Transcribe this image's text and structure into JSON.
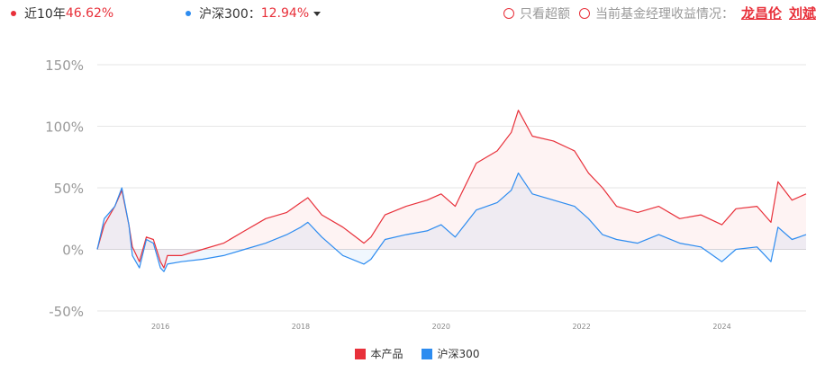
{
  "header": {
    "product_label": "近10年",
    "product_value": "46.62%",
    "index_label": "沪深300：",
    "index_value": "12.94%",
    "option_excess": "只看超额",
    "option_manager": "当前基金经理收益情况：",
    "managers": [
      "龙昌伦",
      "刘斌"
    ]
  },
  "colors": {
    "product": "#e8303a",
    "index": "#2d8cf0"
  },
  "chart_data": {
    "type": "line",
    "title": "",
    "xlabel": "",
    "ylabel": "",
    "ylim": [
      -50,
      150
    ],
    "y_ticks": [
      "150%",
      "100%",
      "50%",
      "0%",
      "-50%"
    ],
    "y_tick_values": [
      150,
      100,
      50,
      0,
      -50
    ],
    "x_ticks": [
      "2016",
      "2018",
      "2020",
      "2022",
      "2024"
    ],
    "x_tick_values": [
      2016,
      2018,
      2020,
      2022,
      2024
    ],
    "xlim": [
      2015.1,
      2025.2
    ],
    "grid": true,
    "legend_position": "bottom",
    "series": [
      {
        "name": "本产品",
        "color": "#e8303a",
        "x": [
          2015.1,
          2015.2,
          2015.35,
          2015.45,
          2015.55,
          2015.6,
          2015.7,
          2015.8,
          2015.9,
          2016.0,
          2016.05,
          2016.1,
          2016.3,
          2016.6,
          2016.9,
          2017.2,
          2017.5,
          2017.8,
          2018.0,
          2018.1,
          2018.3,
          2018.6,
          2018.9,
          2019.0,
          2019.2,
          2019.5,
          2019.8,
          2020.0,
          2020.2,
          2020.5,
          2020.8,
          2021.0,
          2021.1,
          2021.3,
          2021.6,
          2021.9,
          2022.1,
          2022.3,
          2022.5,
          2022.8,
          2023.1,
          2023.4,
          2023.7,
          2024.0,
          2024.2,
          2024.5,
          2024.7,
          2024.8,
          2025.0,
          2025.2
        ],
        "values": [
          0,
          20,
          35,
          48,
          20,
          2,
          -10,
          10,
          8,
          -10,
          -15,
          -5,
          -5,
          0,
          5,
          15,
          25,
          30,
          38,
          42,
          28,
          18,
          5,
          10,
          28,
          35,
          40,
          45,
          35,
          70,
          80,
          95,
          113,
          92,
          88,
          80,
          62,
          50,
          35,
          30,
          35,
          25,
          28,
          20,
          33,
          35,
          22,
          55,
          40,
          45
        ]
      },
      {
        "name": "沪深300",
        "color": "#2d8cf0",
        "x": [
          2015.1,
          2015.2,
          2015.35,
          2015.45,
          2015.55,
          2015.6,
          2015.7,
          2015.8,
          2015.9,
          2016.0,
          2016.05,
          2016.1,
          2016.3,
          2016.6,
          2016.9,
          2017.2,
          2017.5,
          2017.8,
          2018.0,
          2018.1,
          2018.3,
          2018.6,
          2018.9,
          2019.0,
          2019.2,
          2019.5,
          2019.8,
          2020.0,
          2020.2,
          2020.5,
          2020.8,
          2021.0,
          2021.1,
          2021.3,
          2021.6,
          2021.9,
          2022.1,
          2022.3,
          2022.5,
          2022.8,
          2023.1,
          2023.4,
          2023.7,
          2024.0,
          2024.2,
          2024.5,
          2024.7,
          2024.8,
          2025.0,
          2025.2
        ],
        "values": [
          0,
          25,
          35,
          50,
          20,
          -5,
          -15,
          8,
          5,
          -15,
          -18,
          -12,
          -10,
          -8,
          -5,
          0,
          5,
          12,
          18,
          22,
          10,
          -5,
          -12,
          -8,
          8,
          12,
          15,
          20,
          10,
          32,
          38,
          48,
          62,
          45,
          40,
          35,
          25,
          12,
          8,
          5,
          12,
          5,
          2,
          -10,
          0,
          2,
          -10,
          18,
          8,
          12
        ]
      }
    ]
  }
}
